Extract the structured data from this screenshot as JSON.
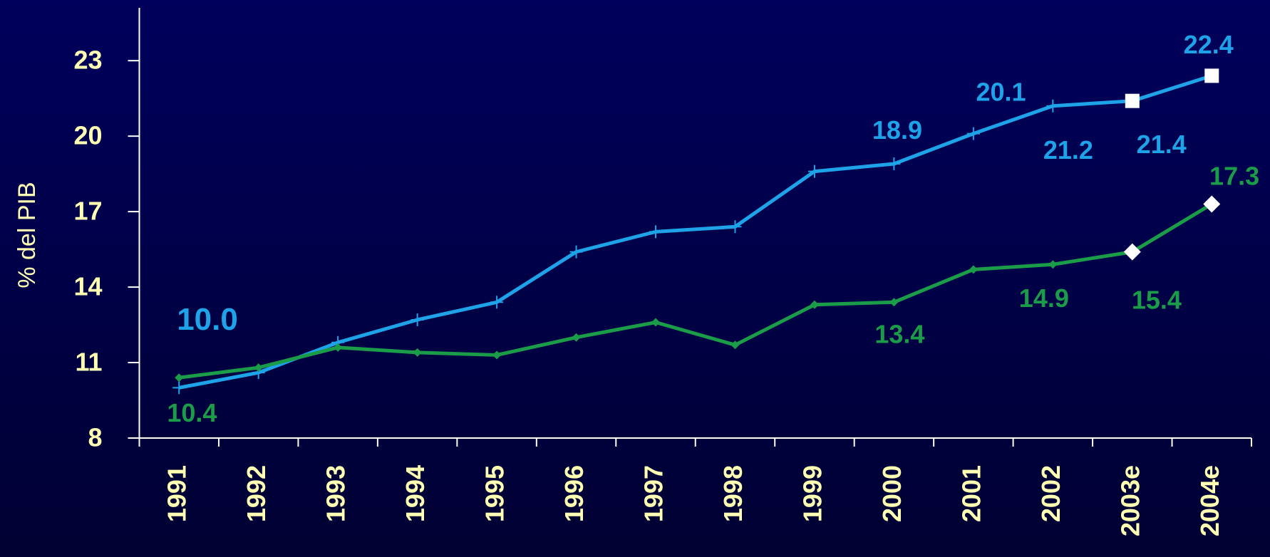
{
  "chart_data": {
    "type": "line",
    "y_label": "% del PIB",
    "categories": [
      "1991",
      "1992",
      "1993",
      "1994",
      "1995",
      "1996",
      "1997",
      "1998",
      "1999",
      "2000",
      "2001",
      "2002",
      "2003e",
      "2004e"
    ],
    "series": [
      {
        "color": "#1ea2e8",
        "marker": "square",
        "values": [
          10.0,
          10.6,
          11.8,
          12.7,
          13.4,
          15.4,
          16.2,
          16.4,
          18.6,
          18.9,
          20.1,
          21.2,
          21.4,
          22.4
        ],
        "value_labels": [
          "10.0",
          null,
          null,
          null,
          null,
          null,
          null,
          null,
          null,
          "18.9",
          "20.1",
          "21.2",
          "21.4",
          "22.4"
        ]
      },
      {
        "color": "#1a9c48",
        "marker": "diamond",
        "values": [
          10.4,
          10.8,
          11.6,
          11.4,
          11.3,
          12.0,
          12.6,
          11.7,
          13.3,
          13.4,
          14.7,
          14.9,
          15.4,
          17.3
        ],
        "value_labels": [
          "10.4",
          null,
          null,
          null,
          null,
          null,
          null,
          null,
          null,
          "13.4",
          null,
          "14.9",
          "15.4",
          "17.3"
        ]
      }
    ],
    "ylim": [
      8,
      25.1
    ],
    "yticks": [
      8,
      11,
      14,
      17,
      20,
      23
    ],
    "grid": false
  }
}
